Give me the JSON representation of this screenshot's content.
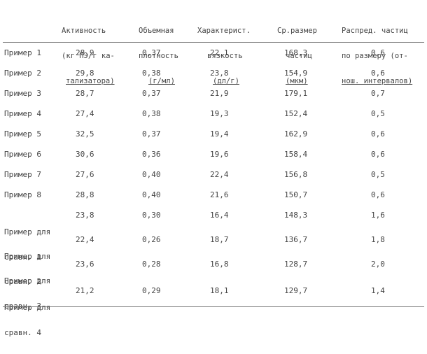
{
  "headers": [
    {
      "lines": [
        "Активность",
        "(кг ПЭ/г ка-",
        "тализатора)"
      ]
    },
    {
      "lines": [
        "Объемная",
        "плотность",
        "(г/мл)"
      ]
    },
    {
      "lines": [
        "Характерист.",
        "вязкость",
        "(дл/г)"
      ]
    },
    {
      "lines": [
        "Ср.размер",
        "частиц",
        "(мкм)"
      ]
    },
    {
      "lines": [
        "Распред. частиц",
        "по размеру (от-",
        "нош. интервалов)"
      ]
    }
  ],
  "rows": [
    {
      "label": [
        "Пример 1"
      ],
      "values": [
        "28,9",
        "0,37",
        "22,1",
        "168,3",
        "0,6"
      ]
    },
    {
      "label": [
        "Пример 2"
      ],
      "values": [
        "29,8",
        "0,38",
        "23,8",
        "154,9",
        "0,6"
      ]
    },
    {
      "label": [
        "Пример 3"
      ],
      "values": [
        "28,7",
        "0,37",
        "21,9",
        "179,1",
        "0,7"
      ]
    },
    {
      "label": [
        "Пример 4"
      ],
      "values": [
        "27,4",
        "0,38",
        "19,3",
        "152,4",
        "0,5"
      ]
    },
    {
      "label": [
        "Пример 5"
      ],
      "values": [
        "32,5",
        "0,37",
        "19,4",
        "162,9",
        "0,6"
      ]
    },
    {
      "label": [
        "Пример 6"
      ],
      "values": [
        "30,6",
        "0,36",
        "19,6",
        "158,4",
        "0,6"
      ]
    },
    {
      "label": [
        "Пример 7"
      ],
      "values": [
        "27,6",
        "0,40",
        "22,4",
        "156,8",
        "0,5"
      ]
    },
    {
      "label": [
        "Пример 8"
      ],
      "values": [
        "28,8",
        "0,40",
        "21,6",
        "150,7",
        "0,6"
      ]
    },
    {
      "label": [
        "Пример для",
        "сравн. 1"
      ],
      "values": [
        "23,8",
        "0,30",
        "16,4",
        "148,3",
        "1,6"
      ]
    },
    {
      "label": [
        "Пример для",
        "сравн. 2"
      ],
      "values": [
        "22,4",
        "0,26",
        "18,7",
        "136,7",
        "1,8"
      ]
    },
    {
      "label": [
        "Пример для",
        "сравн. 3"
      ],
      "values": [
        "23,6",
        "0,28",
        "16,8",
        "128,7",
        "2,0"
      ]
    },
    {
      "label": [
        "Пример для",
        "сравн. 4"
      ],
      "values": [
        "21,2",
        "0,29",
        "18,1",
        "129,7",
        "1,4"
      ]
    }
  ]
}
